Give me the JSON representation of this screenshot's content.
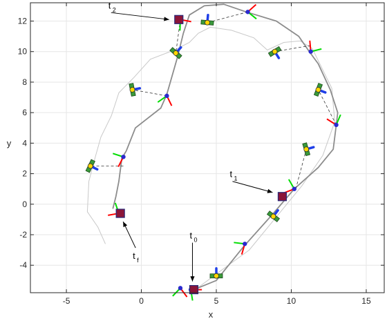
{
  "chart_data": {
    "type": "line",
    "xlabel": "x",
    "ylabel": "y",
    "xlim": [
      -7.4,
      16.2
    ],
    "ylim": [
      -5.8,
      13.2
    ],
    "x_ticks": [
      -5,
      0,
      5,
      10,
      15
    ],
    "y_ticks": [
      -4,
      -2,
      0,
      2,
      4,
      6,
      8,
      10,
      12
    ],
    "grid": true,
    "colors": {
      "reference_path": "#8c8c8c",
      "noisy_path": "#c8c8c8",
      "robot_marker": "#2a2acf",
      "keyframe": "#8b1538",
      "axis_red": "#ff0000",
      "axis_green": "#00dd00",
      "axis_blue": "#1f3fe8",
      "landmark_fill": "#ffd700",
      "landmark_body": "#3a9a3a"
    },
    "reference_path": [
      [
        3.5,
        -5.6
      ],
      [
        5.0,
        -5.0
      ],
      [
        6.8,
        -2.8
      ],
      [
        8.8,
        -0.6
      ],
      [
        10.2,
        1.0
      ],
      [
        11.8,
        2.4
      ],
      [
        12.8,
        3.6
      ],
      [
        13.0,
        5.2
      ],
      [
        13.1,
        6.0
      ],
      [
        12.6,
        7.5
      ],
      [
        11.8,
        9.2
      ],
      [
        11.2,
        10.0
      ],
      [
        10.5,
        11.0
      ],
      [
        9.0,
        12.0
      ],
      [
        7.0,
        12.6
      ],
      [
        5.5,
        13.1
      ],
      [
        4.2,
        13.0
      ],
      [
        3.2,
        12.4
      ],
      [
        2.8,
        11.2
      ],
      [
        2.4,
        9.6
      ],
      [
        1.7,
        7.2
      ],
      [
        1.3,
        6.3
      ],
      [
        -0.4,
        5.0
      ],
      [
        -1.0,
        3.5
      ],
      [
        -1.3,
        3.0
      ],
      [
        -1.5,
        1.5
      ],
      [
        -1.7,
        0.5
      ],
      [
        -1.9,
        -0.3
      ]
    ],
    "noisy_path": [
      [
        3.6,
        -5.6
      ],
      [
        5.1,
        -4.5
      ],
      [
        7.2,
        -3.0
      ],
      [
        9.2,
        -0.6
      ],
      [
        10.7,
        1.2
      ],
      [
        12.1,
        3.2
      ],
      [
        12.9,
        5.4
      ],
      [
        12.7,
        7.6
      ],
      [
        12.0,
        9.0
      ],
      [
        11.4,
        10.2
      ],
      [
        10.6,
        10.7
      ],
      [
        9.5,
        10.6
      ],
      [
        8.4,
        10.1
      ],
      [
        7.5,
        10.9
      ],
      [
        6.0,
        11.4
      ],
      [
        4.6,
        11.6
      ],
      [
        3.8,
        11.2
      ],
      [
        3.2,
        10.6
      ],
      [
        2.2,
        10.1
      ],
      [
        0.6,
        9.5
      ],
      [
        -0.5,
        8.3
      ],
      [
        -1.5,
        7.3
      ],
      [
        -2.0,
        5.8
      ],
      [
        -2.7,
        4.4
      ],
      [
        -3.1,
        3.0
      ],
      [
        -3.5,
        1.5
      ],
      [
        -3.6,
        -0.5
      ],
      [
        -2.9,
        -1.5
      ],
      [
        -2.4,
        -2.6
      ]
    ],
    "robot_poses": [
      [
        3.3,
        -5.6
      ],
      [
        2.6,
        -5.5
      ],
      [
        6.9,
        -2.6
      ],
      [
        10.2,
        1.0
      ],
      [
        13.0,
        5.2
      ],
      [
        11.3,
        10.0
      ],
      [
        7.1,
        12.6
      ],
      [
        2.6,
        12.1
      ],
      [
        1.7,
        7.1
      ],
      [
        -1.2,
        3.1
      ],
      [
        -1.5,
        -0.6
      ]
    ],
    "landmarks": [
      [
        5.0,
        -4.7
      ],
      [
        8.8,
        -0.8
      ],
      [
        11.0,
        3.6
      ],
      [
        11.8,
        7.5
      ],
      [
        8.9,
        10.0
      ],
      [
        4.4,
        11.9
      ],
      [
        2.3,
        9.9
      ],
      [
        -0.6,
        7.5
      ],
      [
        -3.4,
        2.5
      ]
    ],
    "keyframes": [
      {
        "x": 3.5,
        "y": -5.6,
        "label": "t",
        "sub": "0"
      },
      {
        "x": 9.4,
        "y": 0.5,
        "label": "t",
        "sub": "1"
      },
      {
        "x": 2.5,
        "y": 12.1,
        "label": "t",
        "sub": "2"
      },
      {
        "x": -1.4,
        "y": -0.6,
        "label": "t",
        "sub": "f"
      }
    ],
    "association_lines": [
      [
        [
          -1.2,
          2.5
        ],
        [
          -3.4,
          2.5
        ]
      ],
      [
        [
          1.7,
          7.1
        ],
        [
          -0.6,
          7.5
        ]
      ],
      [
        [
          2.6,
          12.1
        ],
        [
          2.3,
          9.9
        ]
      ],
      [
        [
          7.1,
          12.6
        ],
        [
          4.4,
          11.9
        ]
      ],
      [
        [
          11.3,
          10.4
        ],
        [
          8.9,
          10.0
        ]
      ],
      [
        [
          13.0,
          5.2
        ],
        [
          11.8,
          7.5
        ]
      ],
      [
        [
          10.3,
          1.0
        ],
        [
          11.0,
          3.6
        ]
      ]
    ]
  }
}
